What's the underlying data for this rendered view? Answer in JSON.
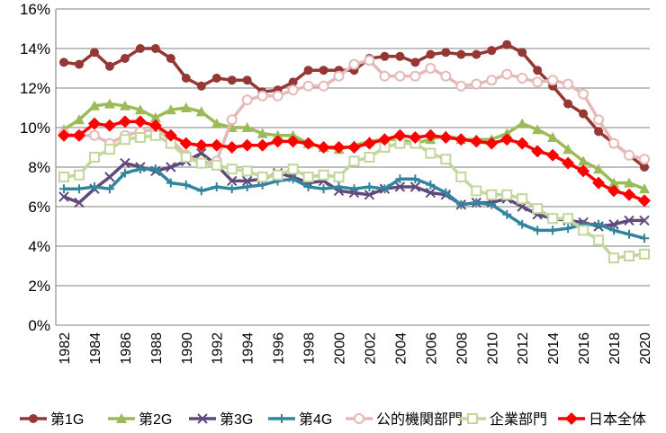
{
  "chart_data": {
    "type": "line",
    "title": "",
    "xlabel": "",
    "ylabel": "",
    "ylim": [
      0,
      16
    ],
    "yticks": [
      "0%",
      "2%",
      "4%",
      "6%",
      "8%",
      "10%",
      "12%",
      "14%",
      "16%"
    ],
    "ytick_values": [
      0,
      2,
      4,
      6,
      8,
      10,
      12,
      14,
      16
    ],
    "grid": "horizontal",
    "legend": "bottom",
    "x": [
      1982,
      1983,
      1984,
      1985,
      1986,
      1987,
      1988,
      1989,
      1990,
      1991,
      1992,
      1993,
      1994,
      1995,
      1996,
      1997,
      1998,
      1999,
      2000,
      2001,
      2002,
      2003,
      2004,
      2005,
      2006,
      2007,
      2008,
      2009,
      2010,
      2011,
      2012,
      2013,
      2014,
      2015,
      2016,
      2017,
      2018,
      2019,
      2020
    ],
    "xtick_labels": [
      "1982",
      "1984",
      "1986",
      "1988",
      "1990",
      "1992",
      "1994",
      "1996",
      "1998",
      "2000",
      "2002",
      "2004",
      "2006",
      "2008",
      "2010",
      "2012",
      "2014",
      "2016",
      "2018",
      "2020"
    ],
    "series": [
      {
        "name": "第1G",
        "color": "#953735",
        "marker": "circle-filled",
        "values": [
          13.3,
          13.2,
          13.8,
          13.1,
          13.5,
          14.0,
          14.0,
          13.5,
          12.5,
          12.1,
          12.5,
          12.4,
          12.4,
          11.8,
          11.9,
          12.3,
          12.9,
          12.9,
          12.9,
          12.9,
          13.5,
          13.6,
          13.6,
          13.3,
          13.7,
          13.8,
          13.7,
          13.7,
          13.9,
          14.2,
          13.8,
          12.9,
          12.1,
          11.2,
          10.7,
          9.8,
          9.2,
          8.6,
          8.0
        ]
      },
      {
        "name": "第2G",
        "color": "#9BBB59",
        "marker": "triangle",
        "values": [
          9.9,
          10.4,
          11.1,
          11.2,
          11.1,
          10.9,
          10.5,
          10.9,
          11.0,
          10.8,
          10.2,
          10.0,
          10.0,
          9.7,
          9.6,
          9.6,
          9.2,
          9.0,
          8.9,
          9.1,
          9.3,
          9.4,
          9.4,
          9.2,
          9.4,
          9.6,
          9.4,
          9.4,
          9.4,
          9.7,
          10.2,
          9.9,
          9.5,
          8.9,
          8.3,
          7.9,
          7.2,
          7.2,
          6.9
        ]
      },
      {
        "name": "第3G",
        "color": "#604A7B",
        "marker": "x",
        "values": [
          6.5,
          6.2,
          6.9,
          7.5,
          8.2,
          8.0,
          7.8,
          8.0,
          8.3,
          8.7,
          8.1,
          7.3,
          7.3,
          7.4,
          7.7,
          7.5,
          7.2,
          7.3,
          6.8,
          6.7,
          6.6,
          6.9,
          7.0,
          7.0,
          6.7,
          6.6,
          6.1,
          6.2,
          6.2,
          6.4,
          6.0,
          5.6,
          5.4,
          5.3,
          5.2,
          5.0,
          5.1,
          5.3,
          5.3
        ]
      },
      {
        "name": "第4G",
        "color": "#31859C",
        "marker": "plus",
        "values": [
          6.9,
          6.9,
          7.0,
          6.9,
          7.7,
          7.9,
          7.9,
          7.2,
          7.1,
          6.8,
          7.0,
          6.9,
          7.0,
          7.1,
          7.3,
          7.4,
          7.0,
          6.9,
          7.0,
          6.9,
          7.0,
          6.9,
          7.4,
          7.4,
          7.1,
          6.7,
          6.1,
          6.2,
          6.1,
          5.6,
          5.1,
          4.8,
          4.8,
          4.9,
          5.1,
          5.1,
          4.8,
          4.6,
          4.4
        ]
      },
      {
        "name": "公的機関部門",
        "color": "#E6B9B8",
        "marker": "circle-hollow",
        "values": [
          9.7,
          9.6,
          9.6,
          9.2,
          9.6,
          9.8,
          9.9,
          9.4,
          8.6,
          8.2,
          8.3,
          10.4,
          11.4,
          11.6,
          11.6,
          11.9,
          12.1,
          12.1,
          12.6,
          13.2,
          13.4,
          12.6,
          12.6,
          12.6,
          13.0,
          12.6,
          12.1,
          12.2,
          12.4,
          12.7,
          12.5,
          12.3,
          12.4,
          12.2,
          11.7,
          10.4,
          9.2,
          8.6,
          8.4
        ]
      },
      {
        "name": "企業部門",
        "color": "#C3D69B",
        "marker": "square-hollow",
        "values": [
          7.5,
          7.6,
          8.5,
          8.9,
          9.4,
          9.5,
          9.6,
          9.2,
          8.5,
          8.2,
          8.1,
          7.9,
          7.8,
          7.5,
          7.6,
          7.9,
          7.5,
          7.6,
          7.5,
          8.3,
          8.5,
          9.0,
          9.2,
          9.2,
          8.7,
          8.4,
          7.5,
          6.8,
          6.6,
          6.6,
          6.4,
          5.9,
          5.4,
          5.4,
          4.8,
          4.3,
          3.4,
          3.5,
          3.6
        ]
      },
      {
        "name": "日本全体",
        "color": "#FF0000",
        "marker": "diamond",
        "values": [
          9.6,
          9.6,
          10.2,
          10.1,
          10.3,
          10.3,
          10.1,
          9.6,
          9.2,
          9.1,
          9.1,
          9.0,
          9.1,
          9.1,
          9.3,
          9.3,
          9.2,
          9.0,
          9.0,
          9.0,
          9.2,
          9.4,
          9.6,
          9.5,
          9.6,
          9.5,
          9.4,
          9.3,
          9.2,
          9.4,
          9.2,
          8.8,
          8.6,
          8.2,
          7.8,
          7.2,
          6.8,
          6.6,
          6.3
        ]
      }
    ]
  }
}
